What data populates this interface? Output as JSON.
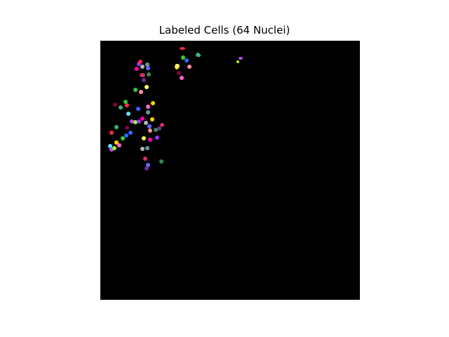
{
  "figure": {
    "title": "Labeled Cells (64 Nuclei)",
    "background_color": "#000000",
    "label_colors": [
      "#ff2a4a",
      "#33cc33",
      "#3366ff",
      "#ffd900",
      "#ff66cc",
      "#66e0ff",
      "#b84dff",
      "#99ff33",
      "#9933ff",
      "#ff00aa",
      "#b3b3b3",
      "#5f9ea0",
      "#cc3366",
      "#6b2d8f",
      "#2e8b57",
      "#6666ff",
      "#ffff66",
      "#ff8da1",
      "#800040",
      "#3cb371"
    ]
  }
}
